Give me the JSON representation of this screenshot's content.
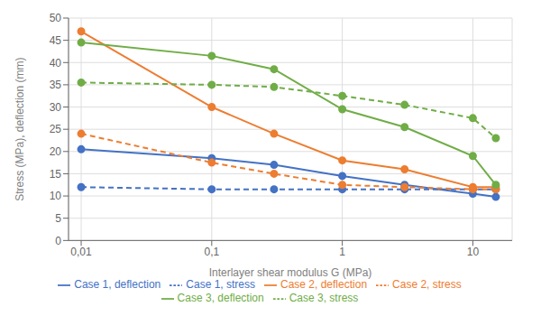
{
  "chart_data": {
    "type": "line",
    "xlabel": "Interlayer shear modulus G (MPa)",
    "ylabel": "Stress (MPa), deflection (mm)",
    "x": [
      0.01,
      0.1,
      0.3,
      1.0,
      3.0,
      10.0,
      15.0
    ],
    "series": [
      {
        "name": "Case 1, stress",
        "color": "#4472C4",
        "line_style": "dashed",
        "marker": "circle",
        "values": [
          12.0,
          11.5,
          11.5,
          11.5,
          11.5,
          11.5,
          11.5
        ]
      },
      {
        "name": "Case 1, deflection",
        "color": "#4472C4",
        "line_style": "solid",
        "marker": "circle",
        "values": [
          20.5,
          18.5,
          17.0,
          14.5,
          12.5,
          10.5,
          9.8
        ]
      },
      {
        "name": "Case 2, stress",
        "color": "#ED7D31",
        "line_style": "dashed",
        "marker": "circle",
        "values": [
          24.0,
          17.5,
          15.0,
          12.5,
          12.0,
          11.5,
          11.5
        ]
      },
      {
        "name": "Case 2, deflection",
        "color": "#ED7D31",
        "line_style": "solid",
        "marker": "circle",
        "values": [
          47.0,
          30.0,
          24.0,
          18.0,
          16.0,
          12.0,
          12.0
        ]
      },
      {
        "name": "Case 3, stress",
        "color": "#70AD47",
        "line_style": "dashed",
        "marker": "circle",
        "values": [
          35.5,
          35.0,
          34.5,
          32.5,
          30.5,
          27.5,
          23.0
        ]
      },
      {
        "name": "Case 3, deflection",
        "color": "#70AD47",
        "line_style": "solid",
        "marker": "circle",
        "values": [
          44.5,
          41.5,
          38.5,
          29.5,
          25.5,
          19.0,
          12.5
        ]
      }
    ],
    "log": "x",
    "xlim": [
      0.008,
      20
    ],
    "xticks": [
      {
        "value": 0.01,
        "label": "0,01"
      },
      {
        "value": 0.1,
        "label": "0,1"
      },
      1,
      10
    ],
    "ylim": [
      0,
      50
    ],
    "yticks": [
      0,
      5,
      10,
      15,
      20,
      25,
      30,
      35,
      40,
      45,
      50
    ],
    "grid": true,
    "legend": "bottom"
  }
}
